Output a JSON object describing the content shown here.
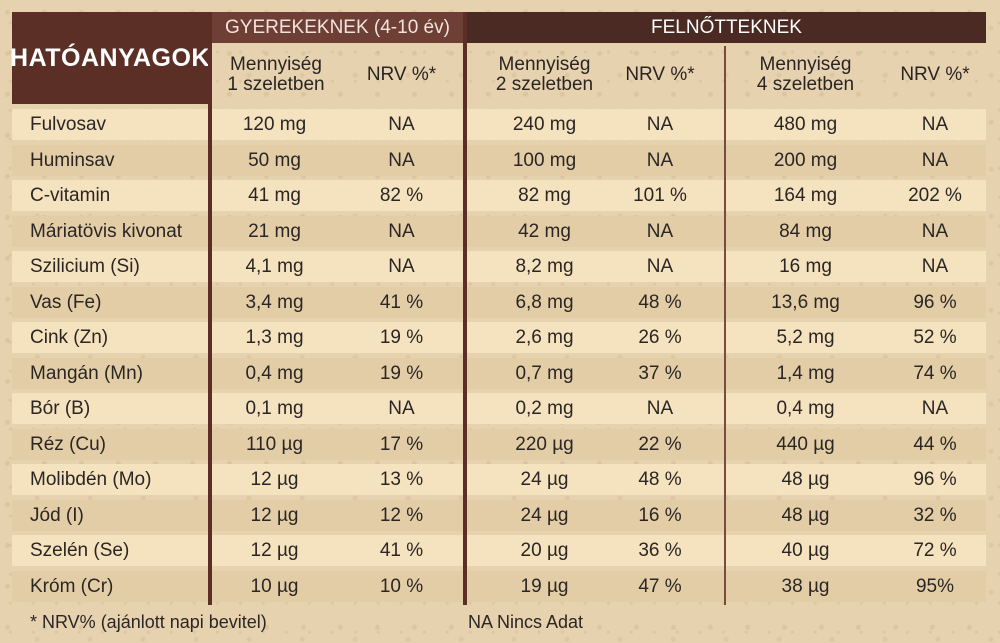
{
  "header": {
    "title": "HATÓANYAGOK",
    "group_children": "GYEREKEKNEK (4-10 év)",
    "group_adults": "FELNŐTTEKNEK",
    "kids_qty": [
      "Mennyiség",
      "1 szeletben"
    ],
    "adult_qty_2": [
      "Mennyiség",
      "2 szeletben"
    ],
    "adult_qty_4": [
      "Mennyiség",
      "4 szeletben"
    ],
    "nrv": "NRV %*"
  },
  "rows": [
    {
      "name": "Fulvosav",
      "kq": "120 mg",
      "kn": "NA",
      "aq": "240 mg",
      "an": "NA",
      "bq": "480 mg",
      "bn": "NA"
    },
    {
      "name": "Huminsav",
      "kq": "50 mg",
      "kn": "NA",
      "aq": "100 mg",
      "an": "NA",
      "bq": "200 mg",
      "bn": "NA"
    },
    {
      "name": "C-vitamin",
      "kq": "41 mg",
      "kn": "82 %",
      "aq": "82 mg",
      "an": "101 %",
      "bq": "164 mg",
      "bn": "202 %"
    },
    {
      "name": "Máriatövis kivonat",
      "kq": "21 mg",
      "kn": "NA",
      "aq": "42 mg",
      "an": "NA",
      "bq": "84 mg",
      "bn": "NA"
    },
    {
      "name": "Szilicium (Si)",
      "kq": "4,1 mg",
      "kn": "NA",
      "aq": "8,2 mg",
      "an": "NA",
      "bq": "16 mg",
      "bn": "NA"
    },
    {
      "name": "Vas (Fe)",
      "kq": "3,4 mg",
      "kn": "41 %",
      "aq": "6,8 mg",
      "an": "48 %",
      "bq": "13,6 mg",
      "bn": "96 %"
    },
    {
      "name": "Cink (Zn)",
      "kq": "1,3 mg",
      "kn": "19 %",
      "aq": "2,6 mg",
      "an": "26 %",
      "bq": "5,2 mg",
      "bn": "52 %"
    },
    {
      "name": "Mangán (Mn)",
      "kq": "0,4 mg",
      "kn": "19 %",
      "aq": "0,7 mg",
      "an": "37 %",
      "bq": "1,4 mg",
      "bn": "74 %"
    },
    {
      "name": "Bór (B)",
      "kq": "0,1 mg",
      "kn": "NA",
      "aq": "0,2 mg",
      "an": "NA",
      "bq": "0,4 mg",
      "bn": "NA"
    },
    {
      "name": "Réz (Cu)",
      "kq": "110 µg",
      "kn": "17 %",
      "aq": "220 µg",
      "an": "22 %",
      "bq": "440 µg",
      "bn": "44 %"
    },
    {
      "name": "Molibdén (Mo)",
      "kq": "12 µg",
      "kn": "13 %",
      "aq": "24 µg",
      "an": "48 %",
      "bq": "48 µg",
      "bn": "96 %"
    },
    {
      "name": "Jód (I)",
      "kq": "12 µg",
      "kn": "12 %",
      "aq": "24 µg",
      "an": "16 %",
      "bq": "48 µg",
      "bn": "32 %"
    },
    {
      "name": "Szelén (Se)",
      "kq": "12 µg",
      "kn": "41 %",
      "aq": "20 µg",
      "an": "36 %",
      "bq": "40 µg",
      "bn": "72 %"
    },
    {
      "name": "Króm (Cr)",
      "kq": "10 µg",
      "kn": "10 %",
      "aq": "19 µg",
      "an": "47 %",
      "bq": "38 µg",
      "bn": "95%"
    }
  ],
  "footer": {
    "nrv_note": "* NRV% (ajánlott napi bevitel)",
    "na_note": "NA   Nincs Adat"
  }
}
